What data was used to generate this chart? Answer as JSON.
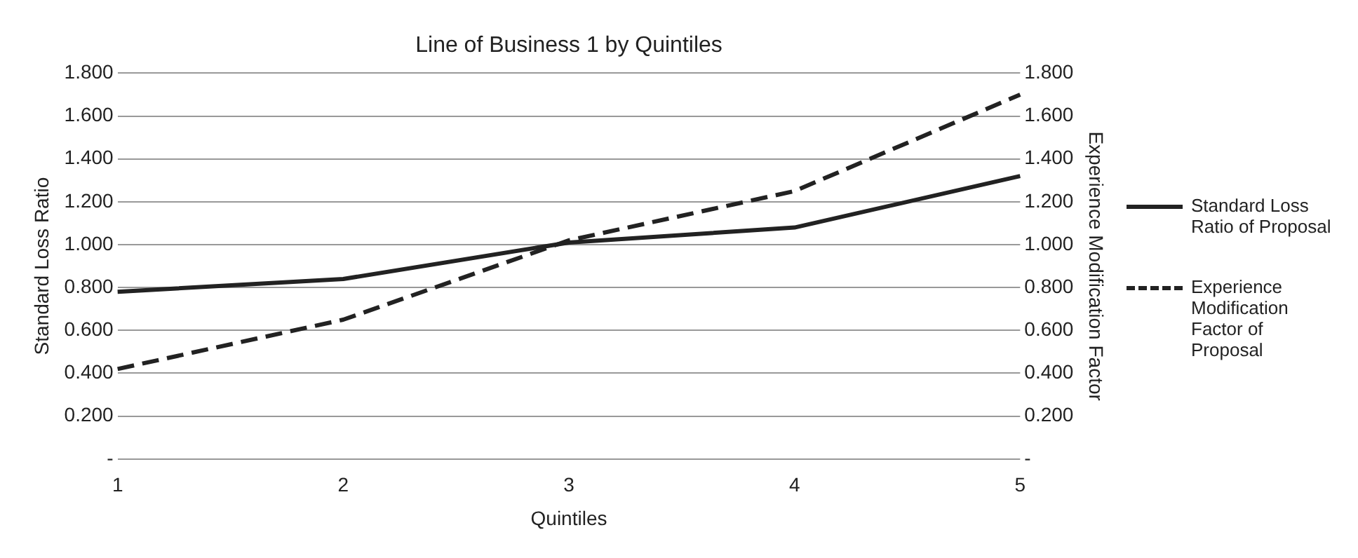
{
  "chart_data": {
    "type": "line",
    "title": "Line of Business 1 by Quintiles",
    "xlabel": "Quintiles",
    "ylabel": "Standard Loss Ratio",
    "y2label": "Experience Modification Factor",
    "categories": [
      "1",
      "2",
      "3",
      "4",
      "5"
    ],
    "series": [
      {
        "name": "Standard Loss Ratio of Proposal",
        "color": "#222222",
        "line_style": "solid",
        "values": [
          0.78,
          0.84,
          1.01,
          1.08,
          1.32
        ]
      },
      {
        "name": "Experience Modification Factor of Proposal",
        "color": "#222222",
        "line_style": "dashed",
        "axis": "y2",
        "values": [
          0.42,
          0.65,
          1.02,
          1.25,
          1.7
        ]
      }
    ],
    "ylim": [
      0,
      1.8
    ],
    "yticks": [
      {
        "value": 0,
        "label": "-"
      },
      {
        "value": 0.2,
        "label": "0.200"
      },
      {
        "value": 0.4,
        "label": "0.400"
      },
      {
        "value": 0.6,
        "label": "0.600"
      },
      {
        "value": 0.8,
        "label": "0.800"
      },
      {
        "value": 1,
        "label": "1.000"
      },
      {
        "value": 1.2,
        "label": "1.200"
      },
      {
        "value": 1.4,
        "label": "1.400"
      },
      {
        "value": 1.6,
        "label": "1.600"
      },
      {
        "value": 1.8,
        "label": "1.800"
      }
    ],
    "y2lim": [
      0,
      1.8
    ],
    "y2ticks": [
      {
        "value": 0,
        "label": "-"
      },
      {
        "value": 0.2,
        "label": "0.200"
      },
      {
        "value": 0.4,
        "label": "0.400"
      },
      {
        "value": 0.6,
        "label": "0.600"
      },
      {
        "value": 0.8,
        "label": "0.800"
      },
      {
        "value": 1,
        "label": "1.000"
      },
      {
        "value": 1.2,
        "label": "1.200"
      },
      {
        "value": 1.4,
        "label": "1.400"
      },
      {
        "value": 1.6,
        "label": "1.600"
      },
      {
        "value": 1.8,
        "label": "1.800"
      }
    ],
    "grid": "y",
    "legend": "right",
    "marker": "none"
  }
}
